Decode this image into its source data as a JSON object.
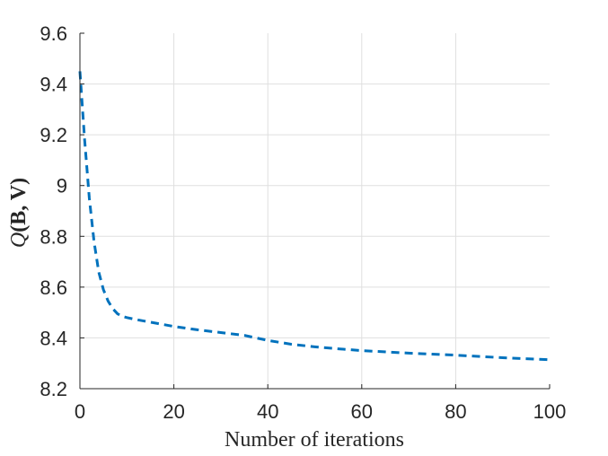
{
  "chart_data": {
    "type": "line",
    "xlabel": "Number of iterations",
    "ylabel_prefix": "Q",
    "ylabel_args": "(B, V)",
    "xlim": [
      0,
      100
    ],
    "ylim": [
      8.2,
      9.6
    ],
    "xticks": [
      0,
      20,
      40,
      60,
      80,
      100
    ],
    "xtick_labels": [
      "0",
      "20",
      "40",
      "60",
      "80",
      "100"
    ],
    "yticks": [
      8.2,
      8.4,
      8.6,
      8.8,
      9.0,
      9.2,
      9.4,
      9.6
    ],
    "ytick_labels": [
      "8.2",
      "8.4",
      "8.6",
      "8.8",
      "9",
      "9.2",
      "9.4",
      "9.6"
    ],
    "grid": true,
    "series": [
      {
        "color": "#0072bd",
        "style": "dashed",
        "x": [
          0,
          1,
          2,
          3,
          4,
          5,
          6,
          7,
          8,
          9,
          10,
          12,
          15,
          20,
          25,
          30,
          35,
          40,
          45,
          50,
          55,
          60,
          70,
          80,
          90,
          100
        ],
        "y": [
          9.45,
          9.18,
          8.95,
          8.78,
          8.66,
          8.59,
          8.545,
          8.515,
          8.495,
          8.485,
          8.48,
          8.472,
          8.462,
          8.445,
          8.432,
          8.421,
          8.41,
          8.39,
          8.375,
          8.365,
          8.357,
          8.35,
          8.34,
          8.332,
          8.322,
          8.314
        ]
      }
    ]
  }
}
